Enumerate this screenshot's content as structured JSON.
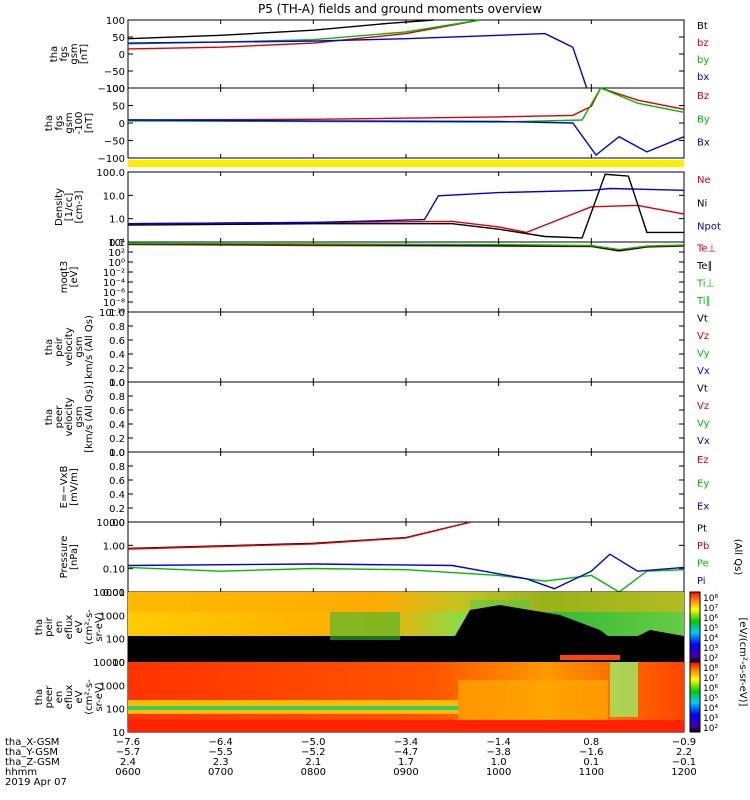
{
  "title": "P5 (TH-A) fields and ground moments overview",
  "colors": {
    "black": "#000000",
    "red": "#dd0000",
    "green": "#00bb00",
    "blue": "#0000dd",
    "yellow_bar": "#ffee00"
  },
  "panels": [
    {
      "id": "fgs-gsm",
      "ylabel": [
        "tha",
        "fgs",
        "gsm",
        "[nT]"
      ],
      "ticks": [
        "100",
        "50",
        "0",
        "−50",
        "−100"
      ],
      "legend": [
        {
          "text": "Bt",
          "color": "#000000"
        },
        {
          "text": "bz",
          "color": "#dd0000"
        },
        {
          "text": "by",
          "color": "#00bb00"
        },
        {
          "text": "bx",
          "color": "#0000dd"
        }
      ]
    },
    {
      "id": "fgs-gsm-clipped",
      "ylabel": [
        "tha",
        "fgs",
        "gsm",
        "-100",
        "[nT]"
      ],
      "ticks": [
        "100",
        "50",
        "0",
        "−50",
        "−100"
      ],
      "legend": [
        {
          "text": "Bz",
          "color": "#dd0000"
        },
        {
          "text": "By",
          "color": "#00bb00"
        },
        {
          "text": "Bx",
          "color": "#0000dd"
        }
      ]
    },
    {
      "id": "density",
      "ylabel": [
        "Density",
        "[1/cc]",
        "[cm-3]"
      ],
      "ticks": [
        "100.0",
        "10.0",
        "1.0",
        "0.1"
      ],
      "legend": [
        {
          "text": "Ne",
          "color": "#dd0000"
        },
        {
          "text": "Ni",
          "color": "#000000"
        },
        {
          "text": "Npot",
          "color": "#0000dd"
        }
      ]
    },
    {
      "id": "temperature",
      "ylabel": [
        "moqt3",
        "[eV]"
      ],
      "ticks": [
        "10⁴",
        "10²",
        "10⁰",
        "10⁻²",
        "10⁻⁴",
        "10⁻⁶",
        "10⁻⁸",
        "10⁻¹⁰"
      ],
      "legend": [
        {
          "text": "Te⊥",
          "color": "#dd0000"
        },
        {
          "text": "Te∥",
          "color": "#000000"
        },
        {
          "text": "Ti⊥",
          "color": "#00bb00"
        },
        {
          "text": "Ti∥",
          "color": "#00bb00"
        }
      ]
    },
    {
      "id": "peir-velocity",
      "ylabel": [
        "tha",
        "peir",
        "velocity",
        "gsm",
        "km/s (All Qs)"
      ],
      "ticks": [
        "1.0",
        "0.8",
        "0.6",
        "0.4",
        "0.2",
        "0.0"
      ],
      "legend": [
        {
          "text": "Vt",
          "color": "#000000"
        },
        {
          "text": "Vz",
          "color": "#dd0000"
        },
        {
          "text": "Vy",
          "color": "#00bb00"
        },
        {
          "text": "Vx",
          "color": "#0000dd"
        }
      ]
    },
    {
      "id": "peer-velocity",
      "ylabel": [
        "tha",
        "peer",
        "velocity",
        "gsm",
        "[km/s (All Qs)]"
      ],
      "ticks": [
        "1.0",
        "0.8",
        "0.6",
        "0.4",
        "0.2",
        "0.0"
      ],
      "legend": [
        {
          "text": "Vt",
          "color": "#000000"
        },
        {
          "text": "Vz",
          "color": "#dd0000"
        },
        {
          "text": "Vy",
          "color": "#00bb00"
        },
        {
          "text": "Vx",
          "color": "#0000dd"
        }
      ]
    },
    {
      "id": "efield",
      "ylabel": [
        "E=−VxB",
        "[mV/m]"
      ],
      "ticks": [
        "1.0",
        "0.8",
        "0.6",
        "0.4",
        "0.2",
        "0.0"
      ],
      "legend": [
        {
          "text": "Ez",
          "color": "#dd0000"
        },
        {
          "text": "Ey",
          "color": "#00bb00"
        },
        {
          "text": "Ex",
          "color": "#0000dd"
        }
      ]
    },
    {
      "id": "pressure",
      "ylabel": [
        "Pressure",
        "[nPa]"
      ],
      "ticks": [
        "10.00",
        "1.00",
        "0.10",
        "0.01"
      ],
      "legend": [
        {
          "text": "Pt",
          "color": "#000000"
        },
        {
          "text": "Pb",
          "color": "#dd0000"
        },
        {
          "text": "Pe",
          "color": "#00bb00"
        },
        {
          "text": "Pi",
          "color": "#0000dd"
        }
      ],
      "side_label": "(All Qs)"
    },
    {
      "id": "peir-spectrogram",
      "ylabel": [
        "tha",
        "peir",
        "en",
        "eflux",
        "eV",
        "(cm²-s-",
        "sr-eV)"
      ],
      "ticks": [
        "10000",
        "1000",
        "100",
        "10"
      ],
      "colorbar_ticks": [
        "10⁸",
        "10⁷",
        "10⁶",
        "10⁵",
        "10⁴",
        "10³",
        "10²"
      ]
    },
    {
      "id": "peer-spectrogram",
      "ylabel": [
        "tha",
        "peer",
        "en",
        "eflux",
        "eV",
        "(cm²-s-",
        "sr-eV)"
      ],
      "ticks": [
        "10000",
        "1000",
        "100",
        "10"
      ],
      "colorbar_ticks": [
        "10⁸",
        "10⁷",
        "10⁶",
        "10⁵",
        "10⁴",
        "10³",
        "10²"
      ]
    }
  ],
  "colorbar_label": "[eV/(cm²-s-sr-eV)]",
  "xaxis": {
    "row_labels": [
      "tha_X-GSM",
      "tha_Y-GSM",
      "tha_Z-GSM",
      "hhmm",
      "2019 Apr 07"
    ],
    "x_gsm": [
      "−7.6",
      "−6.4",
      "−5.0",
      "−3.4",
      "−1.4",
      "0.8",
      "−0.9"
    ],
    "y_gsm": [
      "−5.7",
      "−5.5",
      "−5.2",
      "−4.7",
      "−3.8",
      "−1.6",
      "2.2"
    ],
    "z_gsm": [
      "2.4",
      "2.3",
      "2.1",
      "1.7",
      "1.0",
      "0.1",
      "−0.1"
    ],
    "hhmm": [
      "0600",
      "0700",
      "0800",
      "0900",
      "1000",
      "1100",
      "1200"
    ]
  },
  "chart_data": {
    "type": "line",
    "title": "P5 (TH-A) fields and ground moments overview",
    "xlabel": "hhmm",
    "x": [
      "0600",
      "0700",
      "0800",
      "0900",
      "1000",
      "1100",
      "1200"
    ],
    "panels": [
      {
        "name": "tha fgs gsm [nT]",
        "ylim": [
          -100,
          100
        ],
        "series": [
          {
            "name": "Bt",
            "x": [
              6.0,
              7.0,
              8.0,
              8.8,
              9.3
            ],
            "y": [
              45,
              55,
              70,
              90,
              100
            ]
          },
          {
            "name": "bz",
            "x": [
              6.0,
              7.0,
              8.0,
              9.0,
              9.8
            ],
            "y": [
              15,
              20,
              32,
              60,
              100
            ]
          },
          {
            "name": "by",
            "x": [
              6.0,
              7.0,
              8.0,
              9.0,
              9.8
            ],
            "y": [
              30,
              35,
              42,
              65,
              100
            ]
          },
          {
            "name": "bx",
            "x": [
              6.0,
              7.0,
              8.0,
              9.0,
              10.0,
              10.5,
              10.8,
              10.95
            ],
            "y": [
              32,
              35,
              38,
              45,
              55,
              60,
              20,
              -100
            ]
          }
        ]
      },
      {
        "name": "tha fgs gsm -100 [nT]",
        "ylim": [
          -130,
          100
        ],
        "series": [
          {
            "name": "Bz",
            "x": [
              6.0,
              8.0,
              10.0,
              10.8,
              11.0,
              11.1,
              11.5,
              12.0
            ],
            "y": [
              -5,
              -3,
              5,
              10,
              40,
              100,
              60,
              30
            ]
          },
          {
            "name": "By",
            "x": [
              6.0,
              8.0,
              10.0,
              10.9,
              11.1,
              11.5,
              12.0
            ],
            "y": [
              -8,
              -10,
              -12,
              -5,
              100,
              50,
              20
            ]
          },
          {
            "name": "Bx",
            "x": [
              6.0,
              8.0,
              10.0,
              10.8,
              11.05,
              11.3,
              11.6,
              12.0
            ],
            "y": [
              -5,
              -8,
              -10,
              -15,
              -120,
              -60,
              -110,
              -60
            ]
          }
        ]
      },
      {
        "name": "Density [1/cc]",
        "scale": "log",
        "ylim": [
          0.03,
          200
        ],
        "series": [
          {
            "name": "Ne",
            "x": [
              6.0,
              8.0,
              9.5,
              10.0,
              10.3,
              10.6,
              11.0,
              11.5,
              12.0
            ],
            "y": [
              0.3,
              0.35,
              0.4,
              0.2,
              0.1,
              0.4,
              2.5,
              3.0,
              1.0
            ]
          },
          {
            "name": "Ni",
            "x": [
              6.0,
              8.0,
              9.5,
              10.0,
              10.5,
              10.9,
              11.15,
              11.4,
              11.6,
              12.0
            ],
            "y": [
              0.25,
              0.3,
              0.3,
              0.15,
              0.06,
              0.05,
              150,
              120,
              0.1,
              0.1
            ]
          },
          {
            "name": "Npot",
            "x": [
              6.0,
              8.0,
              9.2,
              9.35,
              10.0,
              11.0,
              11.2,
              12.0
            ],
            "y": [
              0.3,
              0.35,
              0.5,
              10,
              15,
              20,
              25,
              20
            ]
          }
        ]
      },
      {
        "name": "moqt3 [eV]",
        "scale": "log",
        "ylim": [
          1e-10,
          10000
        ],
        "series": [
          {
            "name": "Te⊥",
            "x": [
              6.0,
              8.0,
              10.0,
              11.0,
              11.3,
              11.6,
              12.0
            ],
            "y": [
              3000,
              2000,
              1500,
              1200,
              150,
              1000,
              1500
            ]
          },
          {
            "name": "Te∥",
            "x": [
              6.0,
              8.0,
              10.0,
              11.0,
              11.3,
              11.6,
              12.0
            ],
            "y": [
              4000,
              3000,
              2000,
              1500,
              200,
              1200,
              2000
            ]
          },
          {
            "name": "Ti⊥",
            "x": [
              6.0,
              8.0,
              10.0,
              11.0,
              11.3,
              11.6,
              12.0
            ],
            "y": [
              5000,
              4000,
              3000,
              2000,
              300,
              1500,
              2500
            ]
          }
        ]
      },
      {
        "name": "tha peir velocity gsm km/s (All Qs)",
        "ylim": [
          0,
          1
        ],
        "series": []
      },
      {
        "name": "tha peer velocity gsm [km/s (All Qs)]",
        "ylim": [
          0,
          1
        ],
        "series": []
      },
      {
        "name": "E=−VxB [mV/m]",
        "ylim": [
          0,
          1
        ],
        "series": []
      },
      {
        "name": "Pressure [nPa]",
        "scale": "log",
        "ylim": [
          0.004,
          20
        ],
        "series": [
          {
            "name": "Pt",
            "x": [
              6.0,
              8.0,
              9.0,
              9.7
            ],
            "y": [
              0.8,
              1.5,
              3.0,
              20
            ]
          },
          {
            "name": "Pb",
            "x": [
              6.0,
              8.0,
              9.0,
              9.7
            ],
            "y": [
              0.75,
              1.4,
              2.9,
              20
            ]
          },
          {
            "name": "Pe",
            "x": [
              6.0,
              7.0,
              8.0,
              9.0,
              10.0,
              10.5,
              11.0,
              11.3,
              11.6,
              12.0
            ],
            "y": [
              0.08,
              0.05,
              0.07,
              0.06,
              0.03,
              0.015,
              0.03,
              0.004,
              0.05,
              0.06
            ]
          },
          {
            "name": "Pi",
            "x": [
              6.0,
              8.0,
              9.5,
              10.3,
              10.6,
              11.0,
              11.2,
              11.5,
              12.0
            ],
            "y": [
              0.1,
              0.12,
              0.1,
              0.02,
              0.006,
              0.05,
              0.4,
              0.05,
              0.08
            ]
          }
        ]
      }
    ]
  }
}
